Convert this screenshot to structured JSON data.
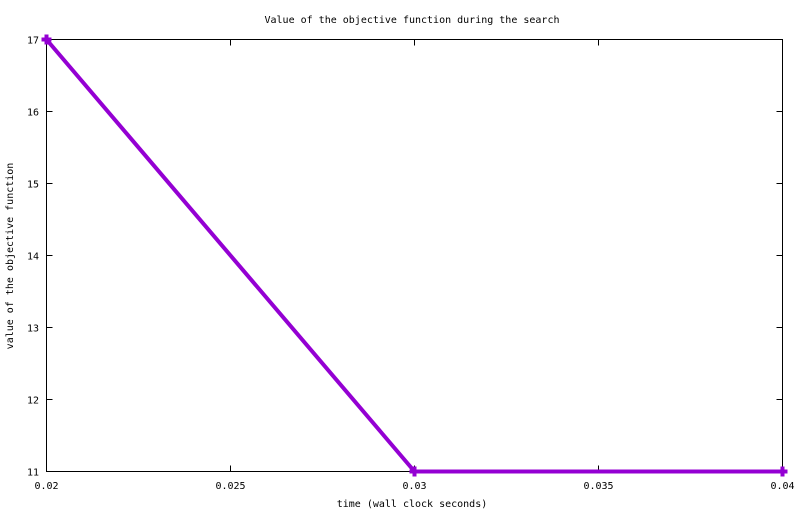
{
  "chart_data": {
    "type": "line",
    "title": "Value of the objective function during the search",
    "xlabel": "time (wall clock seconds)",
    "ylabel": "value of the objective function",
    "xlim": [
      0.02,
      0.04
    ],
    "ylim": [
      11,
      17
    ],
    "x_ticks": [
      "0.02",
      "0.025",
      "0.03",
      "0.035",
      "0.04"
    ],
    "y_ticks": [
      "11",
      "12",
      "13",
      "14",
      "15",
      "16",
      "17"
    ],
    "grid": false,
    "legend": "none",
    "series": [
      {
        "color": "#9400d3",
        "marker": "plus",
        "x": [
          0.02,
          0.03,
          0.04
        ],
        "y": [
          17,
          11,
          11
        ]
      }
    ]
  }
}
